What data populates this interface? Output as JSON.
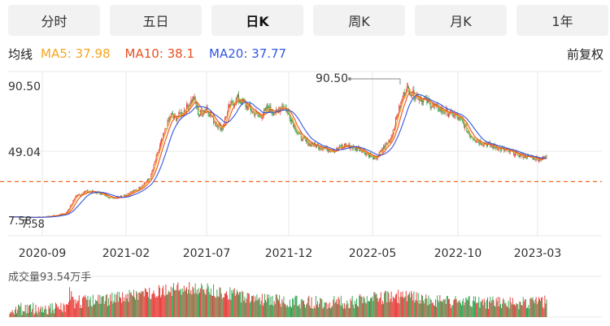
{
  "tabs": [
    {
      "label": "分时",
      "active": false
    },
    {
      "label": "五日",
      "active": false
    },
    {
      "label": "日K",
      "active": true
    },
    {
      "label": "周K",
      "active": false
    },
    {
      "label": "月K",
      "active": false
    },
    {
      "label": "1年",
      "active": false
    }
  ],
  "legend": {
    "title": "均线",
    "ma5": "MA5: 37.98",
    "ma10": "MA10: 38.1",
    "ma20": "MA20: 37.77",
    "adjust": "前复权"
  },
  "colors": {
    "ma5": "#f5a623",
    "ma10": "#e8501f",
    "ma20": "#3358e0",
    "up": "#e8413c",
    "down": "#3aa757",
    "grid": "#e8e8e8",
    "ref": "#f06a28"
  },
  "volume": {
    "label": "成交量93.54万手"
  },
  "chart_data": {
    "type": "candlestick",
    "y_ticks": [
      "90.50",
      "49.04",
      "7.58"
    ],
    "ylim": [
      7.58,
      90.5
    ],
    "x_ticks": [
      "2020-09",
      "2021-02",
      "2021-07",
      "2021-12",
      "2022-05",
      "2022-10",
      "2023-03"
    ],
    "annotations": {
      "high_label": "90.50",
      "low_label_1": "7.58",
      "low_label_2": "7.58"
    },
    "reference_price": 37.98,
    "close_path": [
      [
        0,
        10
      ],
      [
        8,
        9.5
      ],
      [
        15,
        10
      ],
      [
        22,
        12
      ],
      [
        26,
        22
      ],
      [
        30,
        25
      ],
      [
        35,
        24
      ],
      [
        40,
        21
      ],
      [
        44,
        22
      ],
      [
        50,
        26
      ],
      [
        55,
        33
      ],
      [
        58,
        48
      ],
      [
        61,
        62
      ],
      [
        63,
        70
      ],
      [
        65,
        68
      ],
      [
        68,
        72
      ],
      [
        72,
        80
      ],
      [
        74,
        70
      ],
      [
        77,
        74
      ],
      [
        80,
        66
      ],
      [
        83,
        62
      ],
      [
        86,
        75
      ],
      [
        89,
        80
      ],
      [
        92,
        76
      ],
      [
        95,
        72
      ],
      [
        98,
        69
      ],
      [
        101,
        74
      ],
      [
        104,
        71
      ],
      [
        107,
        76
      ],
      [
        110,
        68
      ],
      [
        113,
        58
      ],
      [
        117,
        53
      ],
      [
        120,
        52
      ],
      [
        124,
        50
      ],
      [
        127,
        49
      ],
      [
        131,
        52
      ],
      [
        134,
        51
      ],
      [
        137,
        50
      ],
      [
        140,
        47
      ],
      [
        143,
        44
      ],
      [
        146,
        50
      ],
      [
        149,
        56
      ],
      [
        152,
        72
      ],
      [
        155,
        86
      ],
      [
        158,
        82
      ],
      [
        162,
        79
      ],
      [
        166,
        75
      ],
      [
        170,
        72
      ],
      [
        174,
        70
      ],
      [
        177,
        66
      ],
      [
        180,
        58
      ],
      [
        184,
        54
      ],
      [
        188,
        52
      ],
      [
        192,
        50
      ],
      [
        196,
        48
      ],
      [
        200,
        46
      ],
      [
        204,
        45
      ],
      [
        207,
        44
      ],
      [
        210,
        45
      ]
    ],
    "n_candles": 620
  }
}
